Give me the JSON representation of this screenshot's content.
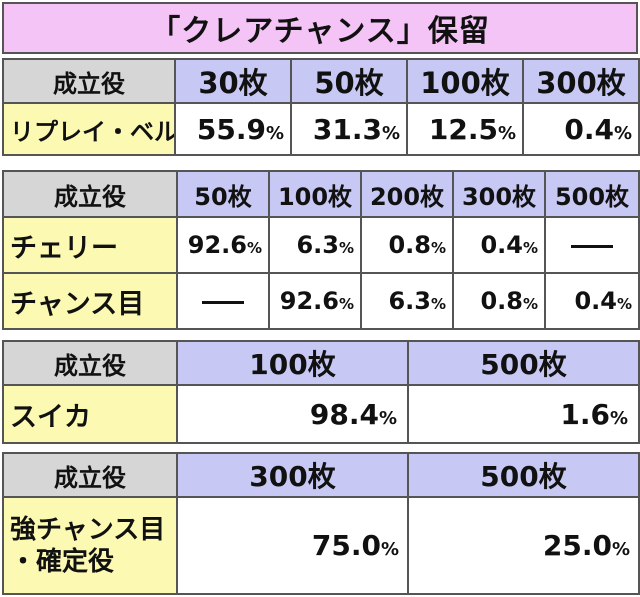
{
  "title": "「クレアチャンス」保留",
  "table1": {
    "header_label": "成立役",
    "columns": [
      "30枚",
      "50枚",
      "100枚",
      "300枚"
    ],
    "rows": [
      {
        "label": "リプレイ・ベル",
        "values": [
          {
            "num": "55.9",
            "pct": "%"
          },
          {
            "num": "31.3",
            "pct": "%"
          },
          {
            "num": "12.5",
            "pct": "%"
          },
          {
            "num": "0.4",
            "pct": "%"
          }
        ]
      }
    ]
  },
  "table2": {
    "header_label": "成立役",
    "columns": [
      "50枚",
      "100枚",
      "200枚",
      "300枚",
      "500枚"
    ],
    "rows": [
      {
        "label": "チェリー",
        "values": [
          {
            "num": "92.6",
            "pct": "%"
          },
          {
            "num": "6.3",
            "pct": "%"
          },
          {
            "num": "0.8",
            "pct": "%"
          },
          {
            "num": "0.4",
            "pct": "%"
          },
          {
            "num": "",
            "pct": ""
          }
        ]
      },
      {
        "label": "チャンス目",
        "values": [
          {
            "num": "",
            "pct": ""
          },
          {
            "num": "92.6",
            "pct": "%"
          },
          {
            "num": "6.3",
            "pct": "%"
          },
          {
            "num": "0.8",
            "pct": "%"
          },
          {
            "num": "0.4",
            "pct": "%"
          }
        ]
      }
    ]
  },
  "table3": {
    "header_label": "成立役",
    "columns": [
      "100枚",
      "500枚"
    ],
    "rows": [
      {
        "label": "スイカ",
        "values": [
          {
            "num": "98.4",
            "pct": "%"
          },
          {
            "num": "1.6",
            "pct": "%"
          }
        ]
      }
    ]
  },
  "table4": {
    "header_label": "成立役",
    "columns": [
      "300枚",
      "500枚"
    ],
    "rows": [
      {
        "label_line1": "強チャンス目",
        "label_line2": "・確定役",
        "values": [
          {
            "num": "75.0",
            "pct": "%"
          },
          {
            "num": "25.0",
            "pct": "%"
          }
        ]
      }
    ]
  },
  "colors": {
    "title_bg": "#f4c4f6",
    "role_header_bg": "#d6d6d6",
    "column_header_bg": "#c8c8f4",
    "role_label_bg": "#fbf9b2",
    "value_bg": "#ffffff",
    "border": "#555555"
  }
}
